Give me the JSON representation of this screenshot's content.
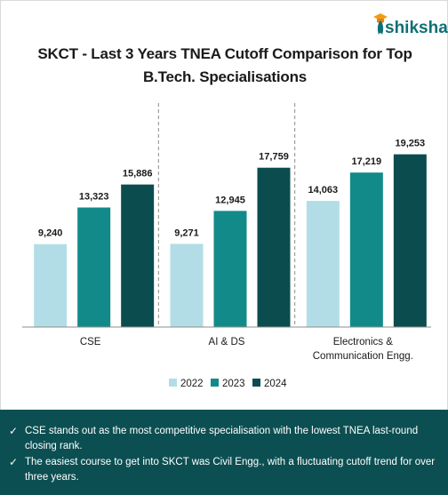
{
  "brand": {
    "name": "shiksha"
  },
  "chart_data": {
    "type": "bar",
    "title": "SKCT - Last 3 Years TNEA Cutoff Comparison for Top B.Tech. Specialisations",
    "title_lines": [
      "SKCT - Last 3 Years TNEA Cutoff Comparison for Top",
      "B.Tech. Specialisations"
    ],
    "categories": [
      "CSE",
      "AI & DS",
      "Electronics & Communication Engg."
    ],
    "category_lines": [
      [
        "CSE"
      ],
      [
        "AI & DS"
      ],
      [
        "Electronics &",
        "Communication Engg."
      ]
    ],
    "series": [
      {
        "name": "2022",
        "values": [
          9240,
          9271,
          14063
        ],
        "labels": [
          "9,240",
          "9,271",
          "14,063"
        ],
        "color": "#b3dde6"
      },
      {
        "name": "2023",
        "values": [
          13323,
          12945,
          17219
        ],
        "labels": [
          "13,323",
          "12,945",
          "17,219"
        ],
        "color": "#128a8a"
      },
      {
        "name": "2024",
        "values": [
          15886,
          17759,
          19253
        ],
        "labels": [
          "15,886",
          "17,759",
          "19,253"
        ],
        "color": "#0b4d4f"
      }
    ],
    "xlabel": "",
    "ylabel": "",
    "ylim": [
      0,
      21000
    ],
    "grid": false,
    "legend_position": "bottom"
  },
  "summary": {
    "bullets": [
      "CSE stands out as the most competitive specialisation with the lowest TNEA last-round closing rank.",
      "The easiest course to get into SKCT was Civil Engg., with a fluctuating cutoff trend for over three years."
    ]
  }
}
